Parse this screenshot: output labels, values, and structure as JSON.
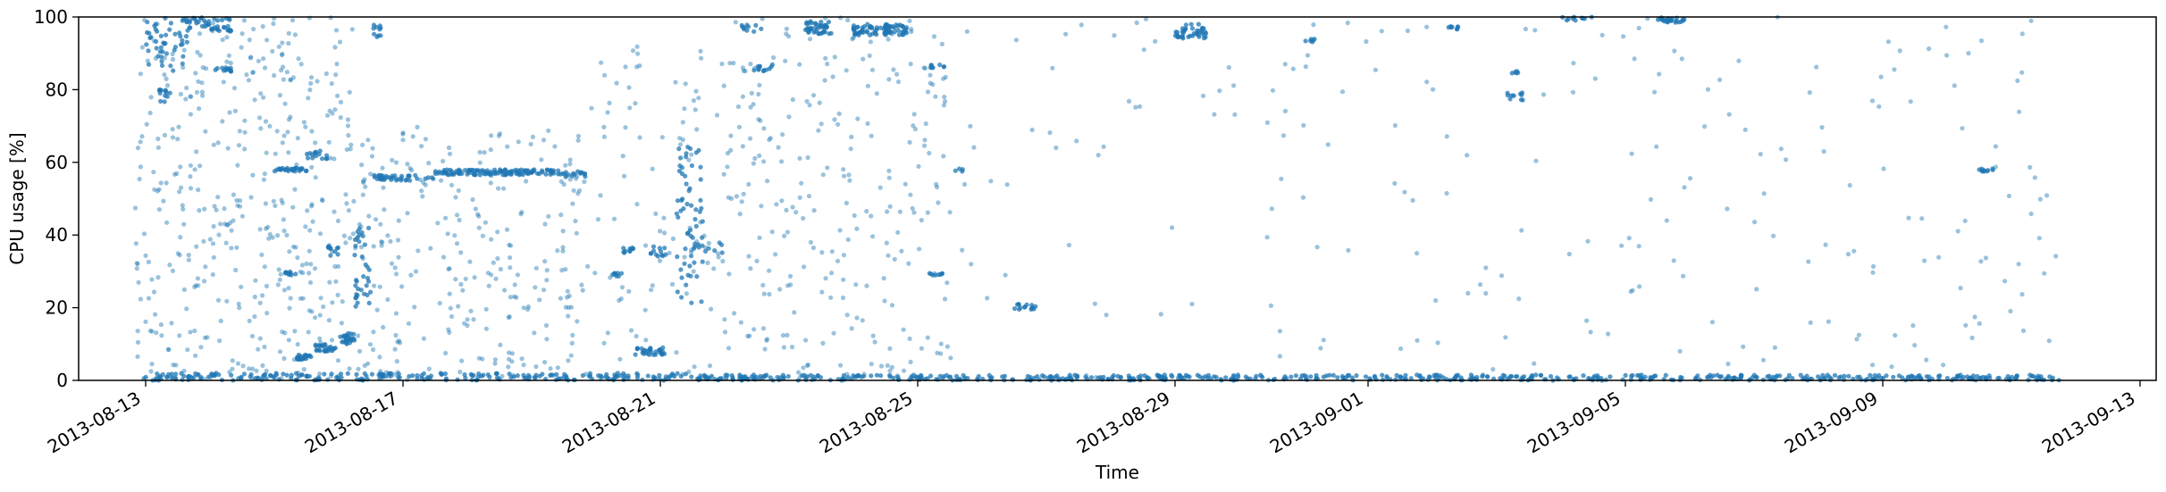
{
  "chart_data": {
    "type": "scatter",
    "title": "",
    "xlabel": "Time",
    "ylabel": "CPU usage [%]",
    "x_type": "date",
    "xlim": [
      "2013-08-11T23:00",
      "2013-09-13T06:00"
    ],
    "ylim": [
      0,
      100
    ],
    "x_ticks": [
      "2013-08-13",
      "2013-08-17",
      "2013-08-21",
      "2013-08-25",
      "2013-08-29",
      "2013-09-01",
      "2013-09-05",
      "2013-09-09",
      "2013-09-13"
    ],
    "y_ticks": [
      0,
      20,
      40,
      60,
      80,
      100
    ],
    "grid": false,
    "legend": "none",
    "marker_color": "#1f77b4",
    "series": [
      {
        "marker": "dot",
        "clusters": [
          {
            "from": "2013-08-13T00:00",
            "to": "2013-08-13T16:00",
            "y": [
              85,
              100
            ],
            "count": 50
          },
          {
            "from": "2013-08-13T16:00",
            "to": "2013-08-14T08:00",
            "y": [
              96,
              100
            ],
            "count": 40
          },
          {
            "from": "2013-08-14T02:00",
            "to": "2013-08-14T08:00",
            "y": [
              85,
              86
            ],
            "count": 12
          },
          {
            "from": "2013-08-13T04:00",
            "to": "2013-08-13T10:00",
            "y": [
              76,
              80
            ],
            "count": 12
          },
          {
            "from": "2013-08-15T00:00",
            "to": "2013-08-15T12:00",
            "y": [
              57.5,
              58.5
            ],
            "count": 30
          },
          {
            "from": "2013-08-15T12:00",
            "to": "2013-08-15T20:00",
            "y": [
              61,
              64
            ],
            "count": 15
          },
          {
            "from": "2013-08-15T04:00",
            "to": "2013-08-15T08:00",
            "y": [
              29,
              30
            ],
            "count": 10
          },
          {
            "from": "2013-08-15T08:00",
            "to": "2013-08-15T14:00",
            "y": [
              5,
              7
            ],
            "count": 20
          },
          {
            "from": "2013-08-15T14:00",
            "to": "2013-08-15T23:00",
            "y": [
              8,
              10
            ],
            "count": 25
          },
          {
            "from": "2013-08-16T00:00",
            "to": "2013-08-16T06:00",
            "y": [
              10,
              13
            ],
            "count": 25
          },
          {
            "from": "2013-08-15T20:00",
            "to": "2013-08-16T00:00",
            "y": [
              34,
              37
            ],
            "count": 10
          },
          {
            "from": "2013-08-16T06:00",
            "to": "2013-08-16T12:00",
            "y": [
              20,
              42
            ],
            "count": 35
          },
          {
            "from": "2013-08-16T12:00",
            "to": "2013-08-16T16:00",
            "y": [
              94,
              98
            ],
            "count": 10
          },
          {
            "from": "2013-08-16T12:00",
            "to": "2013-08-17T12:00",
            "y": [
              55,
              56.5
            ],
            "count": 40
          },
          {
            "from": "2013-08-17T12:00",
            "to": "2013-08-19T10:00",
            "y": [
              56.5,
              58
            ],
            "count": 120
          },
          {
            "from": "2013-08-19T10:00",
            "to": "2013-08-19T20:00",
            "y": [
              56,
              57.5
            ],
            "count": 15
          },
          {
            "from": "2013-08-20T06:00",
            "to": "2013-08-20T10:00",
            "y": [
              28.5,
              29.5
            ],
            "count": 8
          },
          {
            "from": "2013-08-20T10:00",
            "to": "2013-08-20T14:00",
            "y": [
              35,
              37
            ],
            "count": 10
          },
          {
            "from": "2013-08-20T14:00",
            "to": "2013-08-21T02:00",
            "y": [
              7,
              9
            ],
            "count": 30
          },
          {
            "from": "2013-08-20T20:00",
            "to": "2013-08-21T02:00",
            "y": [
              34,
              37
            ],
            "count": 12
          },
          {
            "from": "2013-08-21T06:00",
            "to": "2013-08-21T16:00",
            "y": [
              20,
              65
            ],
            "count": 60
          },
          {
            "from": "2013-08-21T12:00",
            "to": "2013-08-22T00:00",
            "y": [
              35,
              38
            ],
            "count": 10
          },
          {
            "from": "2013-08-22T10:00",
            "to": "2013-08-22T18:00",
            "y": [
              85,
              87
            ],
            "count": 12
          },
          {
            "from": "2013-08-22T06:00",
            "to": "2013-08-22T14:00",
            "y": [
              96,
              98
            ],
            "count": 10
          },
          {
            "from": "2013-08-23T06:00",
            "to": "2013-08-23T16:00",
            "y": [
              95,
              99
            ],
            "count": 40
          },
          {
            "from": "2013-08-24T00:00",
            "to": "2013-08-24T20:00",
            "y": [
              95,
              98
            ],
            "count": 80
          },
          {
            "from": "2013-08-25T04:00",
            "to": "2013-08-25T10:00",
            "y": [
              86,
              87
            ],
            "count": 8
          },
          {
            "from": "2013-08-25T04:00",
            "to": "2013-08-25T10:00",
            "y": [
              28.5,
              29.5
            ],
            "count": 8
          },
          {
            "from": "2013-08-25T14:00",
            "to": "2013-08-25T18:00",
            "y": [
              57.5,
              58.5
            ],
            "count": 4
          },
          {
            "from": "2013-08-26T12:00",
            "to": "2013-08-26T20:00",
            "y": [
              19.5,
              21
            ],
            "count": 15
          },
          {
            "from": "2013-08-29T00:00",
            "to": "2013-08-29T12:00",
            "y": [
              94,
              98
            ],
            "count": 40
          },
          {
            "from": "2013-08-31T00:00",
            "to": "2013-08-31T04:00",
            "y": [
              93,
              94
            ],
            "count": 6
          },
          {
            "from": "2013-09-02T06:00",
            "to": "2013-09-02T10:00",
            "y": [
              96.5,
              97.5
            ],
            "count": 8
          },
          {
            "from": "2013-09-03T04:00",
            "to": "2013-09-03T10:00",
            "y": [
              77,
              80
            ],
            "count": 10
          },
          {
            "from": "2013-09-03T04:00",
            "to": "2013-09-03T08:00",
            "y": [
              84.5,
              85.5
            ],
            "count": 5
          },
          {
            "from": "2013-09-04T00:00",
            "to": "2013-09-04T12:00",
            "y": [
              99,
              100
            ],
            "count": 10
          },
          {
            "from": "2013-09-05T12:00",
            "to": "2013-09-05T22:00",
            "y": [
              98.5,
              100
            ],
            "count": 25
          },
          {
            "from": "2013-09-10T12:00",
            "to": "2013-09-10T18:00",
            "y": [
              57.5,
              58.5
            ],
            "count": 10
          },
          {
            "from": "2013-08-12T22:00",
            "to": "2013-08-21T12:00",
            "y": [
              0,
              2
            ],
            "count": 240
          },
          {
            "from": "2013-08-21T12:00",
            "to": "2013-09-11T20:00",
            "y": [
              0,
              1.5
            ],
            "count": 600
          }
        ],
        "scatter_noise": [
          {
            "from": "2013-08-12T20:00",
            "to": "2013-08-16T06:00",
            "y": [
              0,
              100
            ],
            "count": 420
          },
          {
            "from": "2013-08-16T06:00",
            "to": "2013-08-19T20:00",
            "y": [
              0,
              70
            ],
            "count": 260
          },
          {
            "from": "2013-08-19T20:00",
            "to": "2013-08-22T00:00",
            "y": [
              0,
              100
            ],
            "count": 100
          },
          {
            "from": "2013-08-22T00:00",
            "to": "2013-08-25T12:00",
            "y": [
              0,
              100
            ],
            "count": 260
          },
          {
            "from": "2013-08-25T12:00",
            "to": "2013-08-29T12:00",
            "y": [
              0,
              100
            ],
            "count": 40
          },
          {
            "from": "2013-08-29T12:00",
            "to": "2013-09-11T18:00",
            "y": [
              0,
              100
            ],
            "count": 190
          }
        ]
      }
    ]
  }
}
